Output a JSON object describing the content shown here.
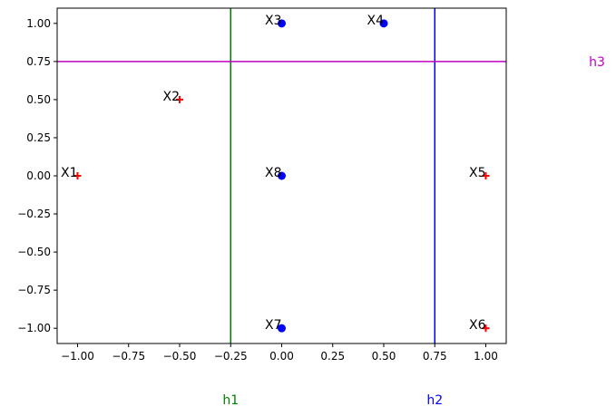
{
  "chart_data": {
    "type": "scatter",
    "title": "",
    "xlabel": "",
    "ylabel": "",
    "xlim": [
      -1.1,
      1.1
    ],
    "ylim": [
      -1.1,
      1.1
    ],
    "grid": false,
    "x_ticks": [
      -1.0,
      -0.75,
      -0.5,
      -0.25,
      0.0,
      0.25,
      0.5,
      0.75,
      1.0
    ],
    "x_tick_labels": [
      "−1.00",
      "−0.75",
      "−0.50",
      "−0.25",
      "0.00",
      "0.25",
      "0.50",
      "0.75",
      "1.00"
    ],
    "y_ticks": [
      -1.0,
      -0.75,
      -0.5,
      -0.25,
      0.0,
      0.25,
      0.5,
      0.75,
      1.0
    ],
    "y_tick_labels": [
      "−1.00",
      "−0.75",
      "−0.50",
      "−0.25",
      "0.00",
      "0.25",
      "0.50",
      "0.75",
      "1.00"
    ],
    "points": [
      {
        "label": "X1",
        "x": -1.0,
        "y": 0.0,
        "marker": "plus",
        "color": "#ff0000"
      },
      {
        "label": "X2",
        "x": -0.5,
        "y": 0.5,
        "marker": "plus",
        "color": "#ff0000"
      },
      {
        "label": "X3",
        "x": 0.0,
        "y": 1.0,
        "marker": "circle",
        "color": "#0000ff"
      },
      {
        "label": "X4",
        "x": 0.5,
        "y": 1.0,
        "marker": "circle",
        "color": "#0000ff"
      },
      {
        "label": "X5",
        "x": 1.0,
        "y": 0.0,
        "marker": "plus",
        "color": "#ff0000"
      },
      {
        "label": "X6",
        "x": 1.0,
        "y": -1.0,
        "marker": "plus",
        "color": "#ff0000"
      },
      {
        "label": "X7",
        "x": 0.0,
        "y": -1.0,
        "marker": "circle",
        "color": "#0000ff"
      },
      {
        "label": "X8",
        "x": 0.0,
        "y": 0.0,
        "marker": "circle",
        "color": "#0000ff"
      }
    ],
    "lines": [
      {
        "name": "h1",
        "orientation": "vertical",
        "value": -0.25,
        "color": "#008000"
      },
      {
        "name": "h2",
        "orientation": "vertical",
        "value": 0.75,
        "color": "#0000ff"
      },
      {
        "name": "h3",
        "orientation": "horizontal",
        "value": 0.75,
        "color": "#bf00bf"
      }
    ]
  }
}
